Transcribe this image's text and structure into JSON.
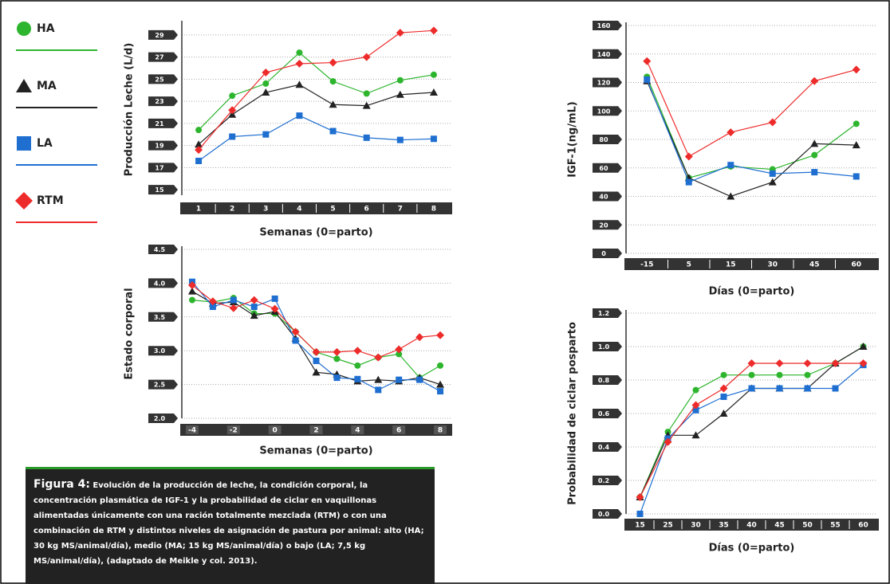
{
  "chart_data": [
    {
      "type": "line",
      "y_label": "Producción Leche (L/d)",
      "x_label": "Semanas (0=parto)",
      "categories": [
        "1",
        "2",
        "3",
        "4",
        "5",
        "6",
        "7",
        "8"
      ],
      "ylim": [
        14.5,
        30
      ],
      "yticks": [
        15,
        17,
        19,
        21,
        23,
        25,
        27,
        29
      ],
      "grid": true,
      "series": [
        {
          "name": "HA",
          "color": "#2db52d",
          "marker": "circle",
          "values": [
            20.4,
            23.5,
            24.6,
            27.4,
            24.8,
            23.7,
            24.9,
            25.4
          ]
        },
        {
          "name": "MA",
          "color": "#222222",
          "marker": "triangle",
          "values": [
            19.1,
            21.8,
            23.8,
            24.5,
            22.7,
            22.6,
            23.6,
            23.8
          ]
        },
        {
          "name": "LA",
          "color": "#1f6fd1",
          "marker": "square",
          "values": [
            17.6,
            19.8,
            20.0,
            21.7,
            20.3,
            19.7,
            19.5,
            19.6
          ]
        },
        {
          "name": "RTM",
          "color": "#ee2b2b",
          "marker": "diamond",
          "values": [
            18.6,
            22.2,
            25.6,
            26.4,
            26.5,
            27.0,
            29.2,
            29.4
          ]
        }
      ]
    },
    {
      "type": "line",
      "y_label": "Estado corporal",
      "x_label": "Semanas (0=parto)",
      "x": [
        -4,
        -3,
        -2,
        -1,
        0,
        1,
        2,
        3,
        4,
        5,
        6,
        7,
        8
      ],
      "xlim": [
        -4.5,
        8.5
      ],
      "xticks": [
        -4,
        -2,
        0,
        2,
        4,
        6,
        8
      ],
      "ylim": [
        2.0,
        4.5
      ],
      "yticks": [
        {
          "value": 2,
          "label": "2.0"
        },
        2.5,
        {
          "value": 3,
          "label": "3.0"
        },
        3.5,
        {
          "value": 4,
          "label": "4.0"
        },
        4.5
      ],
      "grid": true,
      "series": [
        {
          "color": "#2db52d",
          "values": [
            3.75,
            3.72,
            3.78,
            3.55,
            3.55,
            3.28,
            2.98,
            2.88,
            2.78,
            2.9,
            2.95,
            2.6,
            2.78
          ]
        },
        {
          "color": "#222222",
          "values": [
            3.88,
            3.7,
            3.72,
            3.52,
            3.58,
            3.18,
            2.68,
            2.65,
            2.55,
            2.57,
            2.55,
            2.6,
            2.5
          ]
        },
        {
          "color": "#1f6fd1",
          "values": [
            4.02,
            3.65,
            3.75,
            3.65,
            3.77,
            3.15,
            2.85,
            2.6,
            2.58,
            2.42,
            2.57,
            2.57,
            2.4
          ]
        },
        {
          "color": "#ee2b2b",
          "values": [
            3.97,
            3.73,
            3.63,
            3.75,
            3.62,
            3.28,
            2.98,
            2.98,
            3.0,
            2.9,
            3.02,
            3.2,
            3.23
          ]
        }
      ]
    },
    {
      "type": "line",
      "y_label": "IGF-1(ng/mL)",
      "x_label": "Días (0=parto)",
      "categories": [
        "-15",
        "5",
        "15",
        "30",
        "45",
        "60"
      ],
      "ylim": [
        0,
        160
      ],
      "yticks": [
        0,
        20,
        40,
        60,
        80,
        100,
        120,
        140,
        160
      ],
      "grid": true,
      "series": [
        {
          "color": "#2db52d",
          "values": [
            124,
            53,
            61,
            59,
            69,
            91
          ]
        },
        {
          "color": "#222222",
          "values": [
            121,
            53,
            40,
            50,
            77,
            76
          ]
        },
        {
          "color": "#1f6fd1",
          "values": [
            122,
            50,
            62,
            56,
            57,
            54
          ]
        },
        {
          "color": "#ee2b2b",
          "values": [
            135,
            68,
            85,
            92,
            121,
            129
          ]
        }
      ]
    },
    {
      "type": "line",
      "y_label": "Probabilidad de ciclar posparto",
      "x_label": "Días (0=parto)",
      "categories": [
        "15",
        "25",
        "30",
        "35",
        "40",
        "45",
        "50",
        "55",
        "60"
      ],
      "ylim": [
        0,
        1.2
      ],
      "yticks": [
        {
          "value": 0,
          "label": "0.0"
        },
        0.2,
        0.4,
        0.6,
        0.8,
        {
          "value": 1,
          "label": "1.0"
        },
        1.2
      ],
      "grid": true,
      "series": [
        {
          "color": "#2db52d",
          "values": [
            0.1,
            0.49,
            0.74,
            0.83,
            0.83,
            0.83,
            0.83,
            0.9,
            1.0
          ]
        },
        {
          "color": "#222222",
          "values": [
            0.1,
            0.47,
            0.47,
            0.6,
            0.75,
            0.75,
            0.75,
            0.9,
            1.0
          ]
        },
        {
          "color": "#1f6fd1",
          "values": [
            0.0,
            0.45,
            0.62,
            0.7,
            0.75,
            0.75,
            0.75,
            0.75,
            0.89
          ]
        },
        {
          "color": "#ee2b2b",
          "values": [
            0.1,
            0.43,
            0.65,
            0.75,
            0.9,
            0.9,
            0.9,
            0.9,
            0.9
          ]
        }
      ]
    }
  ],
  "caption": {
    "label": "Figura 4:",
    "text": "Evolución de la producción de leche, la condición corporal, la concentración plasmática de IGF-1 y la probabilidad de ciclar en vaquillonas alimentadas únicamente con una ración totalmente mezclada (RTM) o con una combinación de RTM y distintos niveles de asignación de pastura por animal: alto (HA; 30 kg MS/animal/día), medio (MA; 15 kg MS/animal/día) o bajo (LA; 7,5 kg MS/animal/día), (adaptado de Meikle y col. 2013)."
  }
}
